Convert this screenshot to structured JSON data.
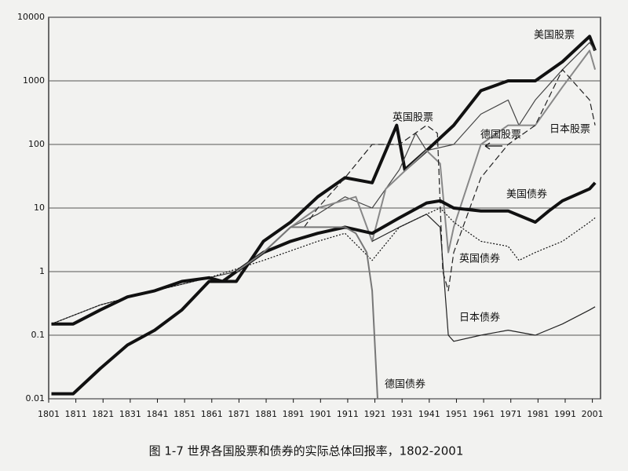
{
  "chart_data": {
    "type": "line",
    "log_y": true,
    "grid": true,
    "caption": "图 1-7  世界各国股票和债券的实际总体回报率，1802-2001",
    "xlim": [
      1801,
      2004
    ],
    "ylim": [
      0.01,
      10000
    ],
    "xticks": [
      1801,
      1811,
      1821,
      1831,
      1841,
      1851,
      1861,
      1871,
      1881,
      1891,
      1901,
      1911,
      1921,
      1931,
      1941,
      1951,
      1961,
      1971,
      1981,
      1991,
      2001
    ],
    "yticks": [
      0.01,
      0.1,
      1,
      10,
      100,
      1000,
      10000
    ],
    "series": [
      {
        "name": "美国股票",
        "color": "#111111",
        "width": 4,
        "dash": "none",
        "x": [
          1802,
          1810,
          1820,
          1830,
          1840,
          1850,
          1860,
          1870,
          1880,
          1890,
          1900,
          1910,
          1920,
          1929,
          1932,
          1940,
          1950,
          1960,
          1970,
          1980,
          1990,
          2000,
          2002
        ],
        "values": [
          0.012,
          0.012,
          0.03,
          0.07,
          0.12,
          0.25,
          0.7,
          0.7,
          3,
          6,
          15,
          30,
          25,
          200,
          40,
          80,
          200,
          700,
          1000,
          1000,
          2000,
          5000,
          3000
        ]
      },
      {
        "name": "英国股票",
        "color": "#444444",
        "width": 1.2,
        "dash": "none",
        "x": [
          1802,
          1820,
          1840,
          1860,
          1870,
          1880,
          1890,
          1900,
          1910,
          1920,
          1930,
          1936,
          1940,
          1950,
          1960,
          1970,
          1974,
          1980,
          1990,
          2000,
          2002
        ],
        "values": [
          0.15,
          0.3,
          0.5,
          0.8,
          1,
          2,
          5,
          8,
          15,
          10,
          40,
          150,
          80,
          100,
          300,
          500,
          200,
          500,
          1500,
          4000,
          3000
        ]
      },
      {
        "name": "德国股票",
        "color": "#888888",
        "width": 2,
        "dash": "none",
        "x": [
          1870,
          1880,
          1890,
          1900,
          1914,
          1920,
          1925,
          1940,
          1945,
          1948,
          1950,
          1960,
          1970,
          1980,
          1990,
          2000,
          2002
        ],
        "values": [
          1,
          2,
          5,
          10,
          15,
          3,
          20,
          80,
          50,
          2,
          5,
          100,
          200,
          200,
          800,
          3000,
          1500
        ]
      },
      {
        "name": "日本股票",
        "color": "#222222",
        "width": 1.2,
        "dash": "8 4",
        "x": [
          1895,
          1900,
          1910,
          1920,
          1930,
          1940,
          1944,
          1946,
          1948,
          1950,
          1960,
          1970,
          1980,
          1990,
          2000,
          2002
        ],
        "values": [
          5,
          10,
          30,
          100,
          100,
          200,
          150,
          1,
          0.5,
          2,
          30,
          100,
          200,
          1500,
          500,
          200
        ]
      },
      {
        "name": "美国债券",
        "color": "#111111",
        "width": 4,
        "dash": "none",
        "x": [
          1802,
          1810,
          1820,
          1830,
          1840,
          1850,
          1860,
          1865,
          1870,
          1880,
          1890,
          1900,
          1910,
          1920,
          1930,
          1940,
          1945,
          1950,
          1960,
          1970,
          1980,
          1985,
          1990,
          2000,
          2002
        ],
        "values": [
          0.15,
          0.15,
          0.25,
          0.4,
          0.5,
          0.7,
          0.8,
          0.7,
          1,
          2,
          3,
          4,
          5,
          4,
          7,
          12,
          13,
          10,
          9,
          9,
          6,
          9,
          13,
          20,
          25
        ]
      },
      {
        "name": "英国债券",
        "color": "#111111",
        "width": 1.2,
        "dash": "2 2",
        "x": [
          1802,
          1820,
          1840,
          1860,
          1880,
          1900,
          1910,
          1920,
          1930,
          1940,
          1945,
          1950,
          1960,
          1970,
          1974,
          1980,
          1990,
          2000,
          2002
        ],
        "values": [
          0.15,
          0.3,
          0.5,
          0.8,
          1.5,
          3,
          4,
          1.5,
          5,
          8,
          10,
          6,
          3,
          2.5,
          1.5,
          2,
          3,
          6,
          7
        ]
      },
      {
        "name": "日本债券",
        "color": "#222222",
        "width": 1.2,
        "dash": "none",
        "x": [
          1920,
          1930,
          1940,
          1945,
          1948,
          1950,
          1960,
          1970,
          1980,
          1990,
          2000,
          2002
        ],
        "values": [
          3,
          5,
          8,
          5,
          0.1,
          0.08,
          0.1,
          0.12,
          0.1,
          0.15,
          0.25,
          0.28
        ]
      },
      {
        "name": "德国债券",
        "color": "#777777",
        "width": 2,
        "dash": "none",
        "x": [
          1870,
          1880,
          1890,
          1900,
          1910,
          1914,
          1918,
          1920,
          1922
        ],
        "values": [
          1,
          2,
          5,
          5,
          5,
          4,
          2,
          0.5,
          0.01
        ]
      }
    ]
  }
}
